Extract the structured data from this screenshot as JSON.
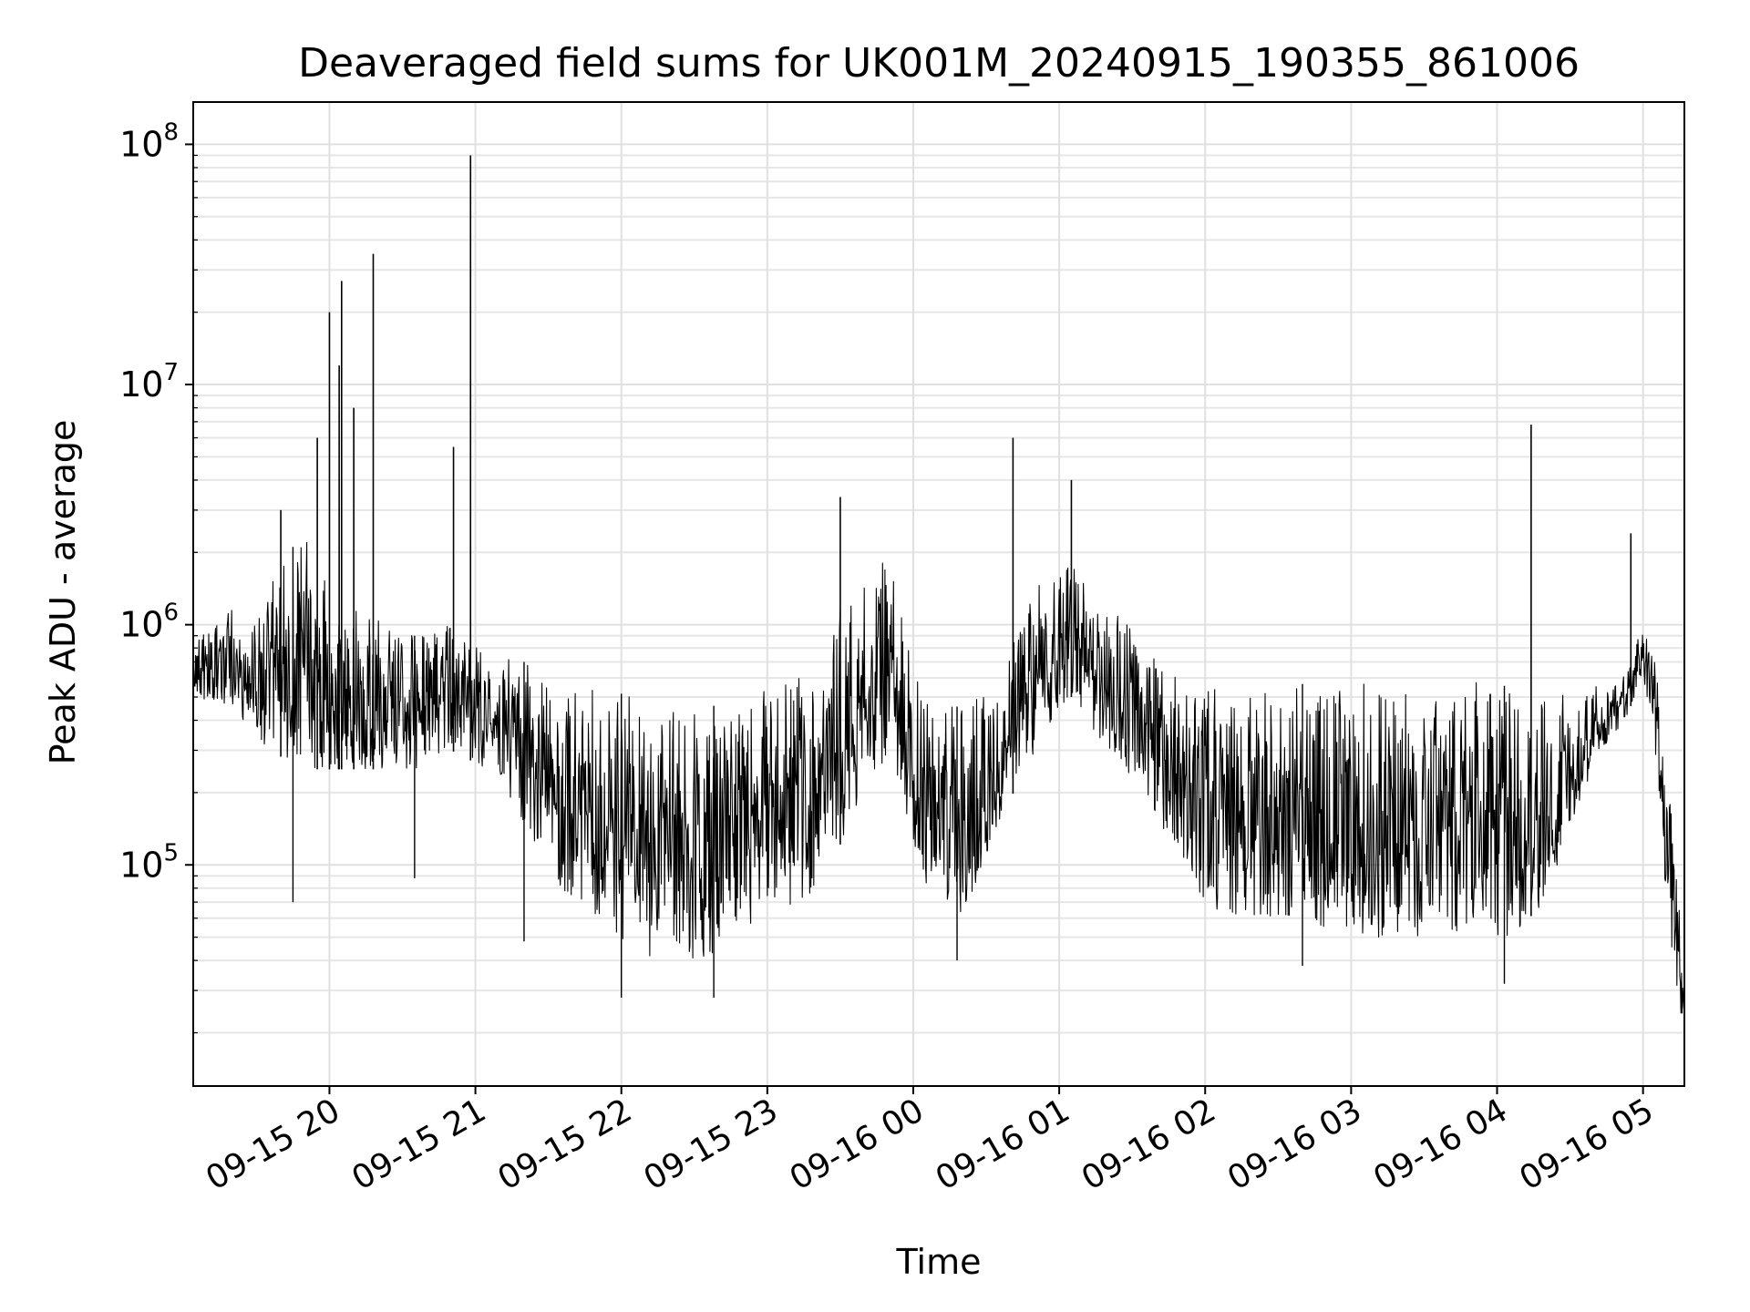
{
  "chart_data": {
    "type": "line",
    "title": "Deaveraged field sums for UK001M_20240915_190355_861006",
    "xlabel": "Time",
    "ylabel": "Peak ADU - average",
    "x_tick_labels": [
      "09-15 20",
      "09-15 21",
      "09-15 22",
      "09-15 23",
      "09-16 00",
      "09-16 01",
      "09-16 02",
      "09-16 03",
      "09-16 04",
      "09-16 05"
    ],
    "x_ticks": [
      "2024-09-15 20:00",
      "2024-09-15 21:00",
      "2024-09-15 22:00",
      "2024-09-15 23:00",
      "2024-09-16 00:00",
      "2024-09-16 01:00",
      "2024-09-16 02:00",
      "2024-09-16 03:00",
      "2024-09-16 04:00",
      "2024-09-16 05:00"
    ],
    "xlim": [
      "2024-09-15 19:04",
      "2024-09-16 05:17"
    ],
    "yscale": "log",
    "ylim": [
      12000,
      150000000
    ],
    "y_tick_values": [
      100000,
      1000000,
      10000000,
      100000000
    ],
    "y_tick_labels": [
      {
        "base": "10",
        "exp": "5"
      },
      {
        "base": "10",
        "exp": "6"
      },
      {
        "base": "10",
        "exp": "7"
      },
      {
        "base": "10",
        "exp": "8"
      }
    ],
    "grid": "major and minor, light gray",
    "line_color": "#000000",
    "envelope": {
      "time": [
        "2024-09-15 19:04",
        "2024-09-15 19:20",
        "2024-09-15 19:35",
        "2024-09-15 19:50",
        "2024-09-15 20:05",
        "2024-09-15 20:20",
        "2024-09-15 20:35",
        "2024-09-15 20:50",
        "2024-09-15 21:05",
        "2024-09-15 21:20",
        "2024-09-15 21:35",
        "2024-09-15 21:50",
        "2024-09-15 22:05",
        "2024-09-15 22:20",
        "2024-09-15 22:35",
        "2024-09-15 22:50",
        "2024-09-15 23:05",
        "2024-09-15 23:20",
        "2024-09-15 23:35",
        "2024-09-15 23:50",
        "2024-09-16 00:05",
        "2024-09-16 00:20",
        "2024-09-16 00:35",
        "2024-09-16 00:50",
        "2024-09-16 01:05",
        "2024-09-16 01:20",
        "2024-09-16 01:35",
        "2024-09-16 01:50",
        "2024-09-16 02:05",
        "2024-09-16 02:20",
        "2024-09-16 02:35",
        "2024-09-16 02:50",
        "2024-09-16 03:05",
        "2024-09-16 03:20",
        "2024-09-16 03:35",
        "2024-09-16 03:50",
        "2024-09-16 04:05",
        "2024-09-16 04:20",
        "2024-09-16 04:35",
        "2024-09-16 04:50",
        "2024-09-16 05:00",
        "2024-09-16 05:05",
        "2024-09-16 05:10",
        "2024-09-16 05:17"
      ],
      "upper": [
        900000,
        1200000,
        1500000,
        2500000,
        1200000,
        1100000,
        900000,
        1000000,
        800000,
        700000,
        600000,
        550000,
        500000,
        450000,
        450000,
        500000,
        550000,
        700000,
        1500000,
        2000000,
        500000,
        450000,
        600000,
        1500000,
        1800000,
        1200000,
        900000,
        600000,
        600000,
        550000,
        550000,
        600000,
        600000,
        550000,
        550000,
        600000,
        550000,
        500000,
        550000,
        600000,
        1000000,
        700000,
        250000,
        40000
      ],
      "lower": [
        500000,
        450000,
        300000,
        250000,
        250000,
        250000,
        250000,
        300000,
        250000,
        150000,
        80000,
        60000,
        40000,
        40000,
        40000,
        50000,
        60000,
        80000,
        150000,
        300000,
        80000,
        60000,
        150000,
        300000,
        500000,
        300000,
        200000,
        100000,
        60000,
        60000,
        60000,
        55000,
        50000,
        50000,
        50000,
        50000,
        50000,
        70000,
        200000,
        350000,
        600000,
        300000,
        60000,
        18000
      ]
    },
    "spikes": [
      {
        "time": "2024-09-15 19:40",
        "value": 3000000
      },
      {
        "time": "2024-09-15 19:55",
        "value": 6000000
      },
      {
        "time": "2024-09-15 20:00",
        "value": 20000000
      },
      {
        "time": "2024-09-15 20:04",
        "value": 12000000
      },
      {
        "time": "2024-09-15 20:05",
        "value": 27000000
      },
      {
        "time": "2024-09-15 20:10",
        "value": 8000000
      },
      {
        "time": "2024-09-15 20:18",
        "value": 35000000
      },
      {
        "time": "2024-09-15 20:51",
        "value": 5500000
      },
      {
        "time": "2024-09-15 20:58",
        "value": 90000000
      },
      {
        "time": "2024-09-15 23:30",
        "value": 3400000
      },
      {
        "time": "2024-09-16 00:41",
        "value": 6000000
      },
      {
        "time": "2024-09-16 01:05",
        "value": 4000000
      },
      {
        "time": "2024-09-16 04:14",
        "value": 6800000
      },
      {
        "time": "2024-09-16 04:55",
        "value": 2400000
      }
    ],
    "dips": [
      {
        "time": "2024-09-15 19:45",
        "value": 70000
      },
      {
        "time": "2024-09-15 20:35",
        "value": 88000
      },
      {
        "time": "2024-09-15 21:20",
        "value": 48000
      },
      {
        "time": "2024-09-15 22:00",
        "value": 28000
      },
      {
        "time": "2024-09-15 22:38",
        "value": 28000
      },
      {
        "time": "2024-09-16 00:18",
        "value": 40000
      },
      {
        "time": "2024-09-16 02:40",
        "value": 38000
      },
      {
        "time": "2024-09-16 04:03",
        "value": 32000
      }
    ]
  }
}
